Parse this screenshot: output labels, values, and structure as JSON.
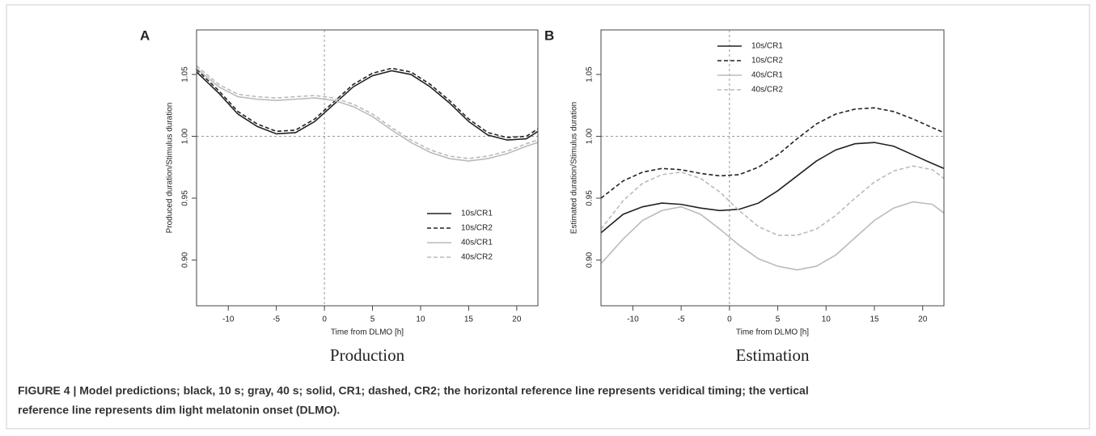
{
  "chart_data": [
    {
      "type": "line",
      "panel": "A",
      "subtitle": "Production",
      "xlabel": "Time from DLMO [h]",
      "ylabel": "Produced duration/Stimulus duration",
      "x": [
        -13.3,
        -11,
        -9,
        -7,
        -5,
        -3,
        -1,
        1,
        3,
        5,
        7,
        9,
        11,
        13,
        15,
        17,
        19,
        21,
        22.2
      ],
      "series": [
        {
          "name": "10s/CR1",
          "color": "#222222",
          "dashed": false,
          "values": [
            1.052,
            1.035,
            1.018,
            1.008,
            1.002,
            1.003,
            1.012,
            1.026,
            1.04,
            1.049,
            1.053,
            1.05,
            1.04,
            1.027,
            1.012,
            1.001,
            0.997,
            0.998,
            1.004
          ]
        },
        {
          "name": "10s/CR2",
          "color": "#222222",
          "dashed": true,
          "values": [
            1.054,
            1.037,
            1.02,
            1.01,
            1.004,
            1.005,
            1.014,
            1.028,
            1.042,
            1.051,
            1.055,
            1.052,
            1.042,
            1.029,
            1.014,
            1.003,
            0.999,
            1.0,
            1.006
          ]
        },
        {
          "name": "40s/CR1",
          "color": "#bbbbbb",
          "dashed": false,
          "values": [
            1.055,
            1.04,
            1.032,
            1.03,
            1.029,
            1.03,
            1.031,
            1.029,
            1.024,
            1.016,
            1.005,
            0.995,
            0.987,
            0.982,
            0.98,
            0.982,
            0.986,
            0.992,
            0.995
          ]
        },
        {
          "name": "40s/CR2",
          "color": "#bbbbbb",
          "dashed": true,
          "values": [
            1.057,
            1.042,
            1.034,
            1.032,
            1.031,
            1.032,
            1.033,
            1.031,
            1.026,
            1.018,
            1.007,
            0.997,
            0.989,
            0.984,
            0.982,
            0.984,
            0.988,
            0.994,
            0.997
          ]
        }
      ],
      "xlim": [
        -13.3,
        22.2
      ],
      "ylim": [
        0.863,
        1.086
      ],
      "xticks": [
        -10,
        -5,
        0,
        5,
        10,
        15,
        20
      ],
      "yticks": [
        {
          "value": 0.9,
          "label": "0.90"
        },
        0.95,
        {
          "value": 1,
          "label": "1.00"
        },
        1.05
      ],
      "hline": 1,
      "vline": 0,
      "legend": "bottom-right"
    },
    {
      "type": "line",
      "panel": "B",
      "subtitle": "Estimation",
      "xlabel": "Time from DLMO [h]",
      "ylabel": "Estimated duration/Stimulus duration",
      "x": [
        -13.3,
        -11,
        -9,
        -7,
        -5,
        -3,
        -1,
        1,
        3,
        5,
        7,
        9,
        11,
        13,
        15,
        17,
        19,
        21,
        22.2
      ],
      "series": [
        {
          "name": "10s/CR1",
          "color": "#222222",
          "dashed": false,
          "values": [
            0.922,
            0.937,
            0.943,
            0.946,
            0.945,
            0.942,
            0.94,
            0.941,
            0.946,
            0.956,
            0.968,
            0.98,
            0.989,
            0.994,
            0.995,
            0.992,
            0.985,
            0.978,
            0.974
          ]
        },
        {
          "name": "10s/CR2",
          "color": "#222222",
          "dashed": true,
          "values": [
            0.95,
            0.964,
            0.971,
            0.974,
            0.973,
            0.97,
            0.968,
            0.969,
            0.975,
            0.985,
            0.998,
            1.01,
            1.018,
            1.022,
            1.023,
            1.02,
            1.014,
            1.007,
            1.003
          ]
        },
        {
          "name": "40s/CR1",
          "color": "#bbbbbb",
          "dashed": false,
          "values": [
            0.897,
            0.917,
            0.932,
            0.94,
            0.943,
            0.937,
            0.925,
            0.912,
            0.901,
            0.895,
            0.892,
            0.895,
            0.904,
            0.918,
            0.932,
            0.942,
            0.947,
            0.945,
            0.938
          ]
        },
        {
          "name": "40s/CR2",
          "color": "#bbbbbb",
          "dashed": true,
          "values": [
            0.925,
            0.948,
            0.962,
            0.969,
            0.971,
            0.966,
            0.955,
            0.94,
            0.927,
            0.92,
            0.92,
            0.925,
            0.936,
            0.95,
            0.963,
            0.972,
            0.976,
            0.973,
            0.966
          ]
        }
      ],
      "xlim": [
        -13.3,
        22.2
      ],
      "ylim": [
        0.863,
        1.086
      ],
      "xticks": [
        -10,
        -5,
        0,
        5,
        10,
        15,
        20
      ],
      "yticks": [
        {
          "value": 0.9,
          "label": "0.90"
        },
        0.95,
        {
          "value": 1,
          "label": "1.00"
        },
        1.05
      ],
      "hline": 1,
      "vline": 0,
      "legend": "top-right"
    }
  ],
  "caption": {
    "line1": "FIGURE 4 | Model predictions; black, 10 s; gray, 40 s; solid, CR1; dashed, CR2; the horizontal reference line represents veridical timing; the vertical",
    "line2": "reference line represents dim light melatonin onset (DLMO)."
  }
}
